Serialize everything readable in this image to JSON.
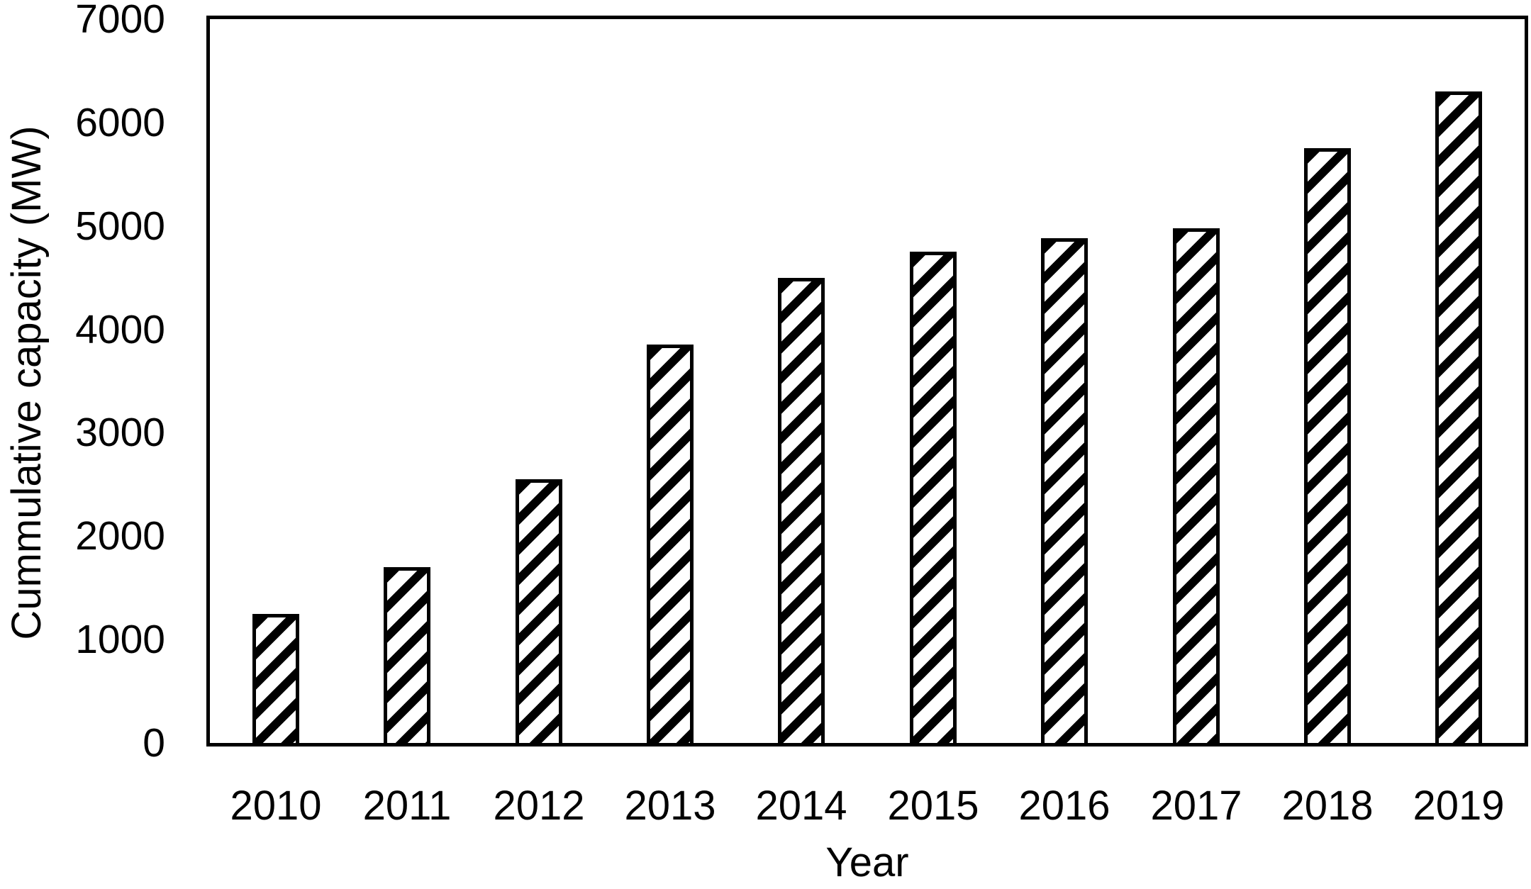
{
  "chart_data": {
    "type": "bar",
    "title": "",
    "xlabel": "Year",
    "ylabel": "Cummulative capacity (MW)",
    "categories": [
      "2010",
      "2011",
      "2012",
      "2013",
      "2014",
      "2015",
      "2016",
      "2017",
      "2018",
      "2019"
    ],
    "values": [
      1250,
      1700,
      2550,
      3850,
      4500,
      4750,
      4880,
      4980,
      5750,
      6300
    ],
    "series_name": "Cummulative capacity",
    "ylim": [
      0,
      7000
    ],
    "yticks": [
      "0",
      "1000",
      "2000",
      "3000",
      "4000",
      "5000",
      "6000",
      "7000"
    ],
    "ytick_values": [
      0,
      1000,
      2000,
      3000,
      4000,
      5000,
      6000,
      7000
    ],
    "grid": false,
    "legend": "none",
    "bar_style": "diagonal-hatch",
    "hatch_direction": "/",
    "colors": {
      "ink": "#000000",
      "background": "#ffffff"
    }
  }
}
